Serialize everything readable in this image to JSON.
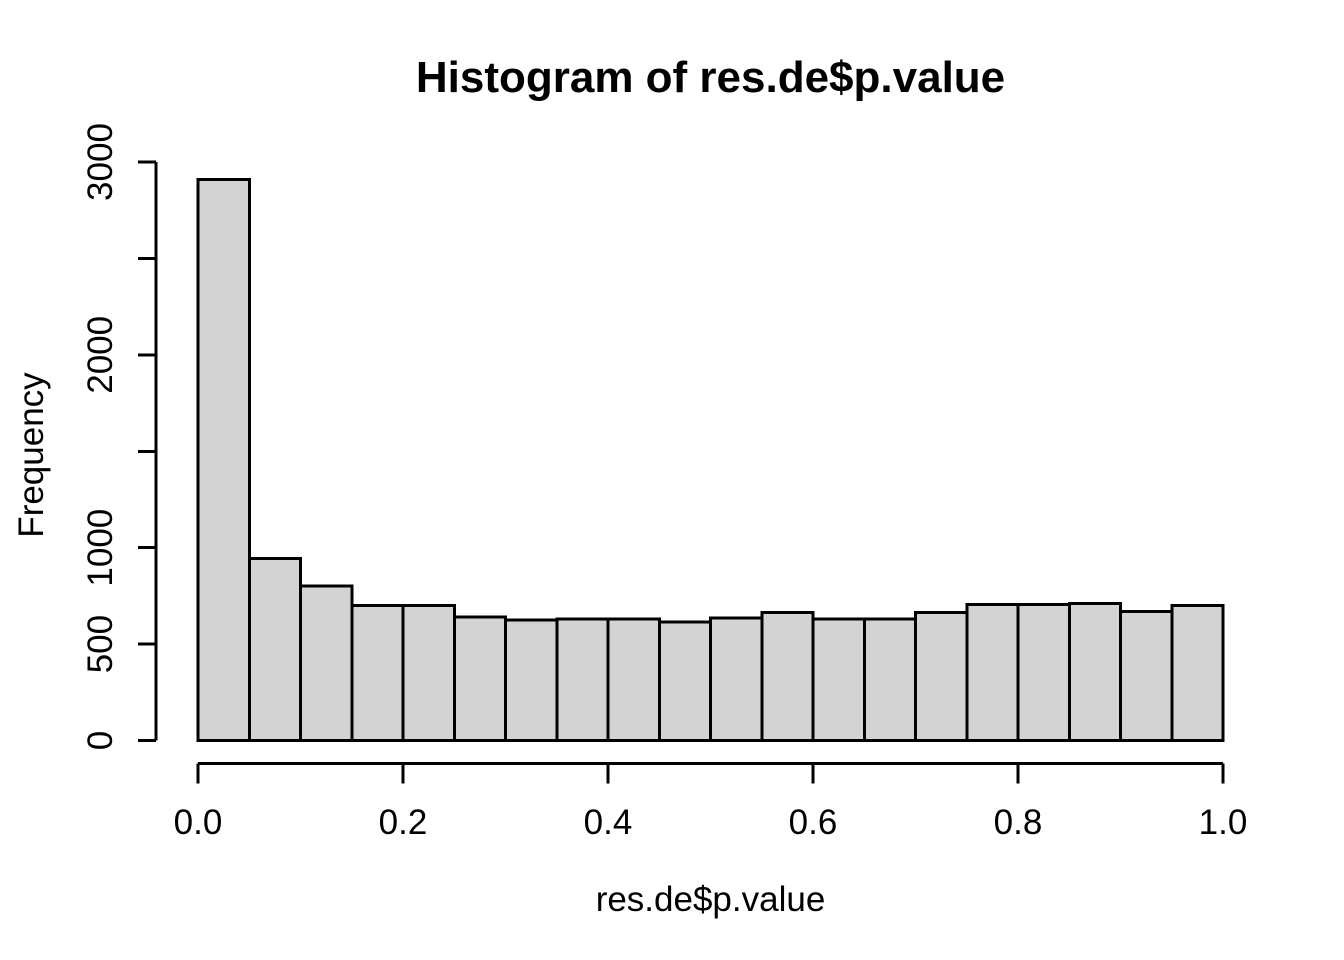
{
  "chart_data": {
    "type": "bar",
    "chart_kind": "histogram",
    "title": "Histogram of res.de$p.value",
    "xlabel": "res.de$p.value",
    "ylabel": "Frequency",
    "bin_edges": [
      0,
      0.05,
      0.1,
      0.15,
      0.2,
      0.25,
      0.3,
      0.35,
      0.4,
      0.45,
      0.5,
      0.55,
      0.6,
      0.65,
      0.7,
      0.75,
      0.8,
      0.85,
      0.9,
      0.95,
      1.0
    ],
    "values": [
      2910,
      945,
      800,
      700,
      700,
      640,
      625,
      630,
      630,
      615,
      635,
      665,
      630,
      630,
      665,
      705,
      705,
      710,
      670,
      700
    ],
    "xlim": [
      0,
      1
    ],
    "ylim": [
      0,
      3000
    ],
    "x_ticks": [
      {
        "value": 0.0,
        "label": "0.0"
      },
      {
        "value": 0.2,
        "label": "0.2"
      },
      {
        "value": 0.4,
        "label": "0.4"
      },
      {
        "value": 0.6,
        "label": "0.6"
      },
      {
        "value": 0.8,
        "label": "0.8"
      },
      {
        "value": 1.0,
        "label": "1.0"
      }
    ],
    "y_ticks": [
      {
        "value": 0,
        "label": "0"
      },
      {
        "value": 500,
        "label": "500"
      },
      {
        "value": 1000,
        "label": "1000"
      },
      {
        "value": 1500,
        "label": ""
      },
      {
        "value": 2000,
        "label": "2000"
      },
      {
        "value": 2500,
        "label": ""
      },
      {
        "value": 3000,
        "label": "3000"
      }
    ],
    "grid": false,
    "legend": null,
    "colors": {
      "bar_fill": "#d3d3d3",
      "bar_stroke": "#000000",
      "axis": "#000000",
      "text": "#000000",
      "background": "#ffffff"
    }
  }
}
